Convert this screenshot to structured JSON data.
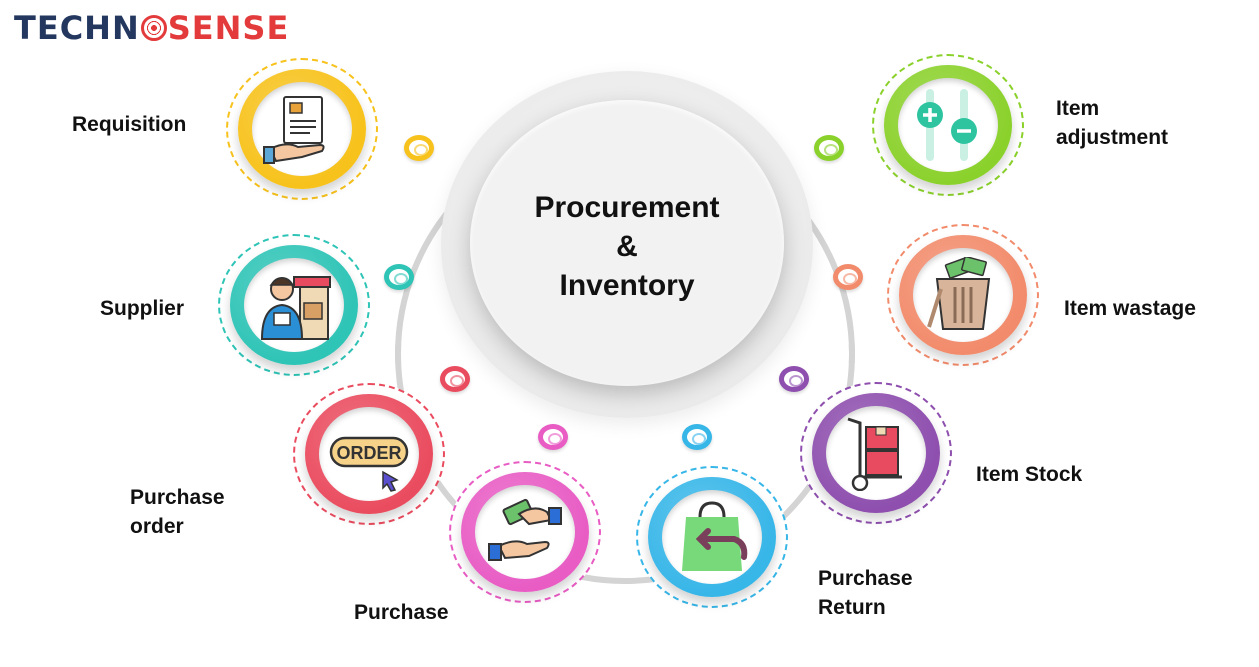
{
  "logo": {
    "part1": "TECHN",
    "part2": "SENSE"
  },
  "hub": {
    "title": "Procurement\n&\nInventory"
  },
  "nodes": [
    {
      "key": "requisition",
      "label": "Requisition",
      "color": "#f7c21b",
      "icon": "requisition-document-icon"
    },
    {
      "key": "supplier",
      "label": "Supplier",
      "color": "#2ec4b6",
      "icon": "supplier-store-icon"
    },
    {
      "key": "purchase_order",
      "label": "Purchase\norder",
      "color": "#ea4c5f",
      "icon": "order-button-icon"
    },
    {
      "key": "purchase",
      "label": "Purchase",
      "color": "#e85cc4",
      "icon": "handshake-payment-icon"
    },
    {
      "key": "purchase_return",
      "label": "Purchase\nReturn",
      "color": "#37b6e8",
      "icon": "shopping-bag-return-icon"
    },
    {
      "key": "item_stock",
      "label": "Item Stock",
      "color": "#8e4fae",
      "icon": "hand-truck-boxes-icon"
    },
    {
      "key": "item_wastage",
      "label": "Item wastage",
      "color": "#f28b6b",
      "icon": "trash-bin-money-icon"
    },
    {
      "key": "item_adjustment",
      "label": "Item\nadjustment",
      "color": "#8bd12c",
      "icon": "plus-minus-adjust-icon"
    }
  ],
  "dot_colors": [
    "#f7c21b",
    "#2ec4b6",
    "#ea4c5f",
    "#e85cc4",
    "#37b6e8",
    "#8e4fae",
    "#f28b6b",
    "#8bd12c"
  ],
  "order_icon_text": "ORDER"
}
